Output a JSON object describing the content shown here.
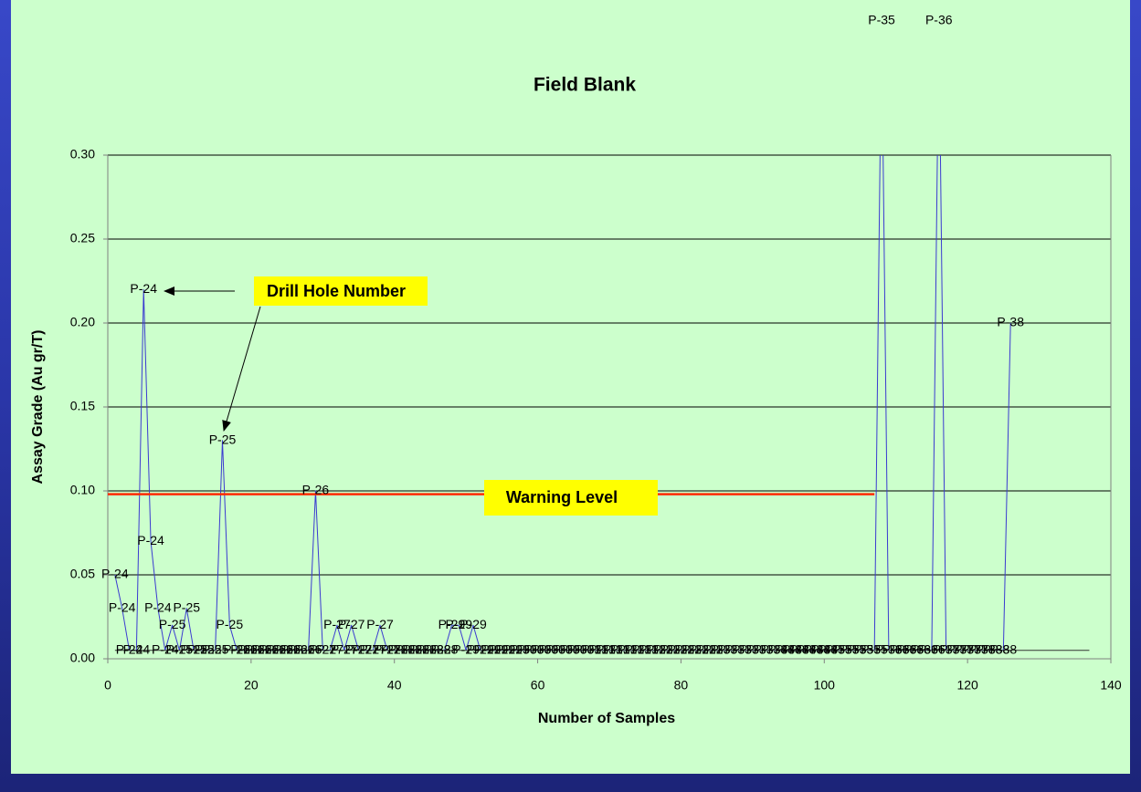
{
  "chart_data": {
    "type": "line",
    "title": "Field Blank",
    "xlabel": "Number of Samples",
    "ylabel": "Assay Grade (Au gr/T)",
    "xlim": [
      0,
      140
    ],
    "xticks": [
      0,
      20,
      40,
      60,
      80,
      100,
      120,
      140
    ],
    "ylim": [
      0,
      0.3
    ],
    "yticks": [
      {
        "value": 0,
        "label": "0.00"
      },
      {
        "value": 0.05,
        "label": "0.05"
      },
      {
        "value": 0.1,
        "label": "0.10"
      },
      {
        "value": 0.15,
        "label": "0.15"
      },
      {
        "value": 0.2,
        "label": "0.20"
      },
      {
        "value": 0.25,
        "label": "0.25"
      },
      {
        "value": 0.3,
        "label": "0.30"
      }
    ],
    "grid": true,
    "annotation": "Drill Hole Number",
    "series": [
      {
        "color": "#3a3ad0",
        "x": [
          1,
          2,
          3,
          4,
          5,
          6,
          7,
          8,
          9,
          10,
          11,
          12,
          13,
          14,
          15,
          16,
          17,
          18,
          19,
          20,
          21,
          22,
          23,
          24,
          25,
          26,
          27,
          28,
          29,
          30,
          31,
          32,
          33,
          34,
          35,
          36,
          37,
          38,
          39,
          40,
          41,
          42,
          43,
          44,
          45,
          46,
          47,
          48,
          49,
          50,
          51,
          52,
          53,
          54,
          55,
          56,
          57,
          58,
          59,
          60,
          61,
          62,
          63,
          64,
          65,
          66,
          67,
          68,
          69,
          70,
          71,
          72,
          73,
          74,
          75,
          76,
          77,
          78,
          79,
          80,
          81,
          82,
          83,
          84,
          85,
          86,
          87,
          88,
          89,
          90,
          91,
          92,
          93,
          94,
          95,
          96,
          97,
          98,
          99,
          100,
          101,
          102,
          103,
          104,
          105,
          106,
          107,
          108,
          109,
          110,
          111,
          112,
          113,
          114,
          115,
          116,
          117,
          118,
          119,
          120,
          121,
          122,
          123,
          124,
          125,
          126
        ],
        "values": [
          0.05,
          0.03,
          0.005,
          0.005,
          0.22,
          0.07,
          0.03,
          0.005,
          0.02,
          0.005,
          0.03,
          0.005,
          0.005,
          0.005,
          0.005,
          0.13,
          0.02,
          0.005,
          0.005,
          0.005,
          0.005,
          0.005,
          0.005,
          0.005,
          0.005,
          0.005,
          0.005,
          0.005,
          0.1,
          0.005,
          0.005,
          0.02,
          0.005,
          0.02,
          0.005,
          0.005,
          0.005,
          0.02,
          0.005,
          0.005,
          0.005,
          0.005,
          0.005,
          0.005,
          0.005,
          0.005,
          0.005,
          0.02,
          0.02,
          0.005,
          0.02,
          0.005,
          0.005,
          0.005,
          0.005,
          0.005,
          0.005,
          0.005,
          0.005,
          0.005,
          0.005,
          0.005,
          0.005,
          0.005,
          0.005,
          0.005,
          0.005,
          0.005,
          0.005,
          0.005,
          0.005,
          0.005,
          0.005,
          0.005,
          0.005,
          0.005,
          0.005,
          0.005,
          0.005,
          0.005,
          0.005,
          0.005,
          0.005,
          0.005,
          0.005,
          0.005,
          0.005,
          0.005,
          0.005,
          0.005,
          0.005,
          0.005,
          0.005,
          0.005,
          0.005,
          0.005,
          0.005,
          0.005,
          0.005,
          0.005,
          0.005,
          0.005,
          0.005,
          0.005,
          0.005,
          0.005,
          0.005,
          0.38,
          0.005,
          0.005,
          0.005,
          0.005,
          0.005,
          0.005,
          0.005,
          0.38,
          0.005,
          0.005,
          0.005,
          0.005,
          0.005,
          0.005,
          0.005,
          0.005,
          0.005,
          0.2
        ],
        "labels": [
          "P-24",
          "P-24",
          "P-24",
          "P-24",
          "P-24",
          "P-24",
          "P-24",
          "P-24",
          "P-25",
          "P-25",
          "P-25",
          "P-25",
          "P-25",
          "P-25",
          "P-25",
          "P-25",
          "P-25",
          "P-26",
          "P-26",
          "P-26",
          "P-26",
          "P-26",
          "P-26",
          "P-26",
          "P-26",
          "P-26",
          "P-26",
          "P-26",
          "P-26",
          "P-27",
          "P-27",
          "P-27",
          "P-27",
          "P-27",
          "P-27",
          "P-27",
          "P-27",
          "P-27",
          "P-27",
          "P-28",
          "P-28",
          "P-28",
          "P-28",
          "P-28",
          "P-28",
          "P-28",
          "P-28",
          "P-29",
          "P-29",
          "P-29",
          "P-29",
          "P-29",
          "P-29",
          "P-29",
          "P-29",
          "P-29",
          "P-29",
          "P-30",
          "P-30",
          "P-30",
          "P-30",
          "P-30",
          "P-30",
          "P-30",
          "P-30",
          "P-30",
          "P-31",
          "P-31",
          "P-31",
          "P-31",
          "P-31",
          "P-31",
          "P-31",
          "P-31",
          "P-31",
          "P-32",
          "P-32",
          "P-32",
          "P-32",
          "P-32",
          "P-32",
          "P-32",
          "P-32",
          "P-32",
          "P-33",
          "P-33",
          "P-33",
          "P-33",
          "P-33",
          "P-33",
          "P-33",
          "P-33",
          "P-34",
          "P-34",
          "P-34",
          "P-34",
          "P-34",
          "P-34",
          "P-34",
          "P-34",
          "P-35",
          "P-35",
          "P-35",
          "P-35",
          "P-35",
          "P-35",
          "P-35",
          "P-35",
          "P-36",
          "P-36",
          "P-36",
          "P-36",
          "P-36",
          "P-36",
          "P-36",
          "P-36",
          "P-37",
          "P-37",
          "P-37",
          "P-37",
          "P-37",
          "P-38",
          "P-38",
          "P-38",
          "P-38",
          "P-38"
        ]
      },
      {
        "name": "Warning Level",
        "color": "#ff2a00",
        "x": [
          0,
          107
        ],
        "values": [
          0.098,
          0.098
        ]
      },
      {
        "color": "#333333",
        "x": [
          1,
          137
        ],
        "values": [
          0.005,
          0.005
        ]
      }
    ]
  }
}
